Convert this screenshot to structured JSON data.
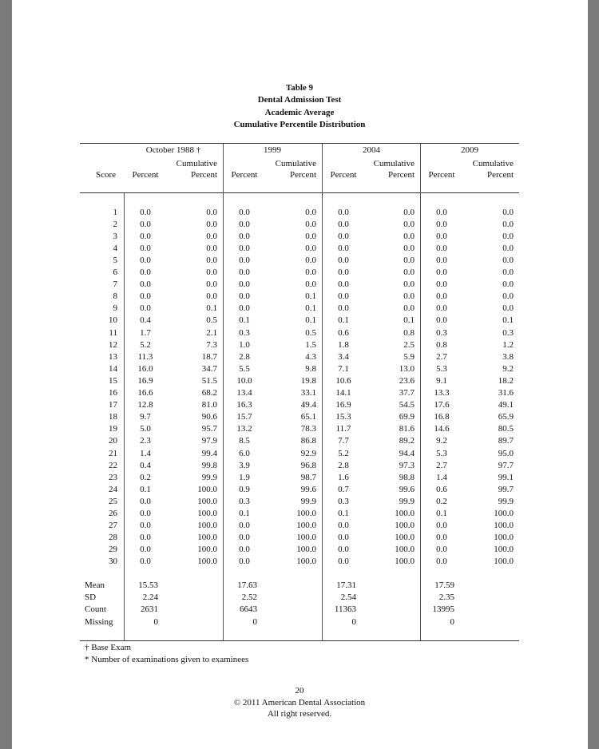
{
  "title": {
    "line1": "Table 9",
    "line2": "Dental Admission Test",
    "line3": "Academic Average",
    "line4": "Cumulative Percentile Distribution"
  },
  "header": {
    "score": "Score",
    "groups": [
      "October 1988 †",
      "1999",
      "2004",
      "2009"
    ],
    "percent": "Percent",
    "cumulative_line1": "Cumulative",
    "cumulative_line2": "Percent"
  },
  "rows": [
    [
      "1",
      "0.0",
      "0.0",
      "0.0",
      "0.0",
      "0.0",
      "0.0",
      "0.0",
      "0.0"
    ],
    [
      "2",
      "0.0",
      "0.0",
      "0.0",
      "0.0",
      "0.0",
      "0.0",
      "0.0",
      "0.0"
    ],
    [
      "3",
      "0.0",
      "0.0",
      "0.0",
      "0.0",
      "0.0",
      "0.0",
      "0.0",
      "0.0"
    ],
    [
      "4",
      "0.0",
      "0.0",
      "0.0",
      "0.0",
      "0.0",
      "0.0",
      "0.0",
      "0.0"
    ],
    [
      "5",
      "0.0",
      "0.0",
      "0.0",
      "0.0",
      "0.0",
      "0.0",
      "0.0",
      "0.0"
    ],
    [
      "6",
      "0.0",
      "0.0",
      "0.0",
      "0.0",
      "0.0",
      "0.0",
      "0.0",
      "0.0"
    ],
    [
      "7",
      "0.0",
      "0.0",
      "0.0",
      "0.0",
      "0.0",
      "0.0",
      "0.0",
      "0.0"
    ],
    [
      "8",
      "0.0",
      "0.0",
      "0.0",
      "0.1",
      "0.0",
      "0.0",
      "0.0",
      "0.0"
    ],
    [
      "9",
      "0.0",
      "0.1",
      "0.0",
      "0.1",
      "0.0",
      "0.0",
      "0.0",
      "0.0"
    ],
    [
      "10",
      "0.4",
      "0.5",
      "0.1",
      "0.1",
      "0.1",
      "0.1",
      "0.0",
      "0.1"
    ],
    [
      "11",
      "1.7",
      "2.1",
      "0.3",
      "0.5",
      "0.6",
      "0.8",
      "0.3",
      "0.3"
    ],
    [
      "12",
      "5.2",
      "7.3",
      "1.0",
      "1.5",
      "1.8",
      "2.5",
      "0.8",
      "1.2"
    ],
    [
      "13",
      "11.3",
      "18.7",
      "2.8",
      "4.3",
      "3.4",
      "5.9",
      "2.7",
      "3.8"
    ],
    [
      "14",
      "16.0",
      "34.7",
      "5.5",
      "9.8",
      "7.1",
      "13.0",
      "5.3",
      "9.2"
    ],
    [
      "15",
      "16.9",
      "51.5",
      "10.0",
      "19.8",
      "10.6",
      "23.6",
      "9.1",
      "18.2"
    ],
    [
      "16",
      "16.6",
      "68.2",
      "13.4",
      "33.1",
      "14.1",
      "37.7",
      "13.3",
      "31.6"
    ],
    [
      "17",
      "12.8",
      "81.0",
      "16.3",
      "49.4",
      "16.9",
      "54.5",
      "17.6",
      "49.1"
    ],
    [
      "18",
      "9.7",
      "90.6",
      "15.7",
      "65.1",
      "15.3",
      "69.9",
      "16.8",
      "65.9"
    ],
    [
      "19",
      "5.0",
      "95.7",
      "13.2",
      "78.3",
      "11.7",
      "81.6",
      "14.6",
      "80.5"
    ],
    [
      "20",
      "2.3",
      "97.9",
      "8.5",
      "86.8",
      "7.7",
      "89.2",
      "9.2",
      "89.7"
    ],
    [
      "21",
      "1.4",
      "99.4",
      "6.0",
      "92.9",
      "5.2",
      "94.4",
      "5.3",
      "95.0"
    ],
    [
      "22",
      "0.4",
      "99.8",
      "3.9",
      "96.8",
      "2.8",
      "97.3",
      "2.7",
      "97.7"
    ],
    [
      "23",
      "0.2",
      "99.9",
      "1.9",
      "98.7",
      "1.6",
      "98.8",
      "1.4",
      "99.1"
    ],
    [
      "24",
      "0.1",
      "100.0",
      "0.9",
      "99.6",
      "0.7",
      "99.6",
      "0.6",
      "99.7"
    ],
    [
      "25",
      "0.0",
      "100.0",
      "0.3",
      "99.9",
      "0.3",
      "99.9",
      "0.2",
      "99.9"
    ],
    [
      "26",
      "0.0",
      "100.0",
      "0.1",
      "100.0",
      "0.1",
      "100.0",
      "0.1",
      "100.0"
    ],
    [
      "27",
      "0.0",
      "100.0",
      "0.0",
      "100.0",
      "0.0",
      "100.0",
      "0.0",
      "100.0"
    ],
    [
      "28",
      "0.0",
      "100.0",
      "0.0",
      "100.0",
      "0.0",
      "100.0",
      "0.0",
      "100.0"
    ],
    [
      "29",
      "0.0",
      "100.0",
      "0.0",
      "100.0",
      "0.0",
      "100.0",
      "0.0",
      "100.0"
    ],
    [
      "30",
      "0.0",
      "100.0",
      "0.0",
      "100.0",
      "0.0",
      "100.0",
      "0.0",
      "100.0"
    ]
  ],
  "stats": [
    {
      "label": "Mean",
      "values": [
        "15.53",
        "17.63",
        "17.31",
        "17.59"
      ]
    },
    {
      "label": "SD",
      "values": [
        "2.24",
        "2.52",
        "2.54",
        "2.35"
      ]
    },
    {
      "label": "Count",
      "values": [
        "2631",
        "6643",
        "11363",
        "13995"
      ]
    },
    {
      "label": "Missing",
      "values": [
        "0",
        "0",
        "0",
        "0"
      ]
    }
  ],
  "footnotes": [
    "† Base Exam",
    "* Number of examinations given to examinees"
  ],
  "footer": {
    "page_number": "20",
    "copyright": "© 2011 American Dental Association",
    "rights": "All right reserved."
  }
}
